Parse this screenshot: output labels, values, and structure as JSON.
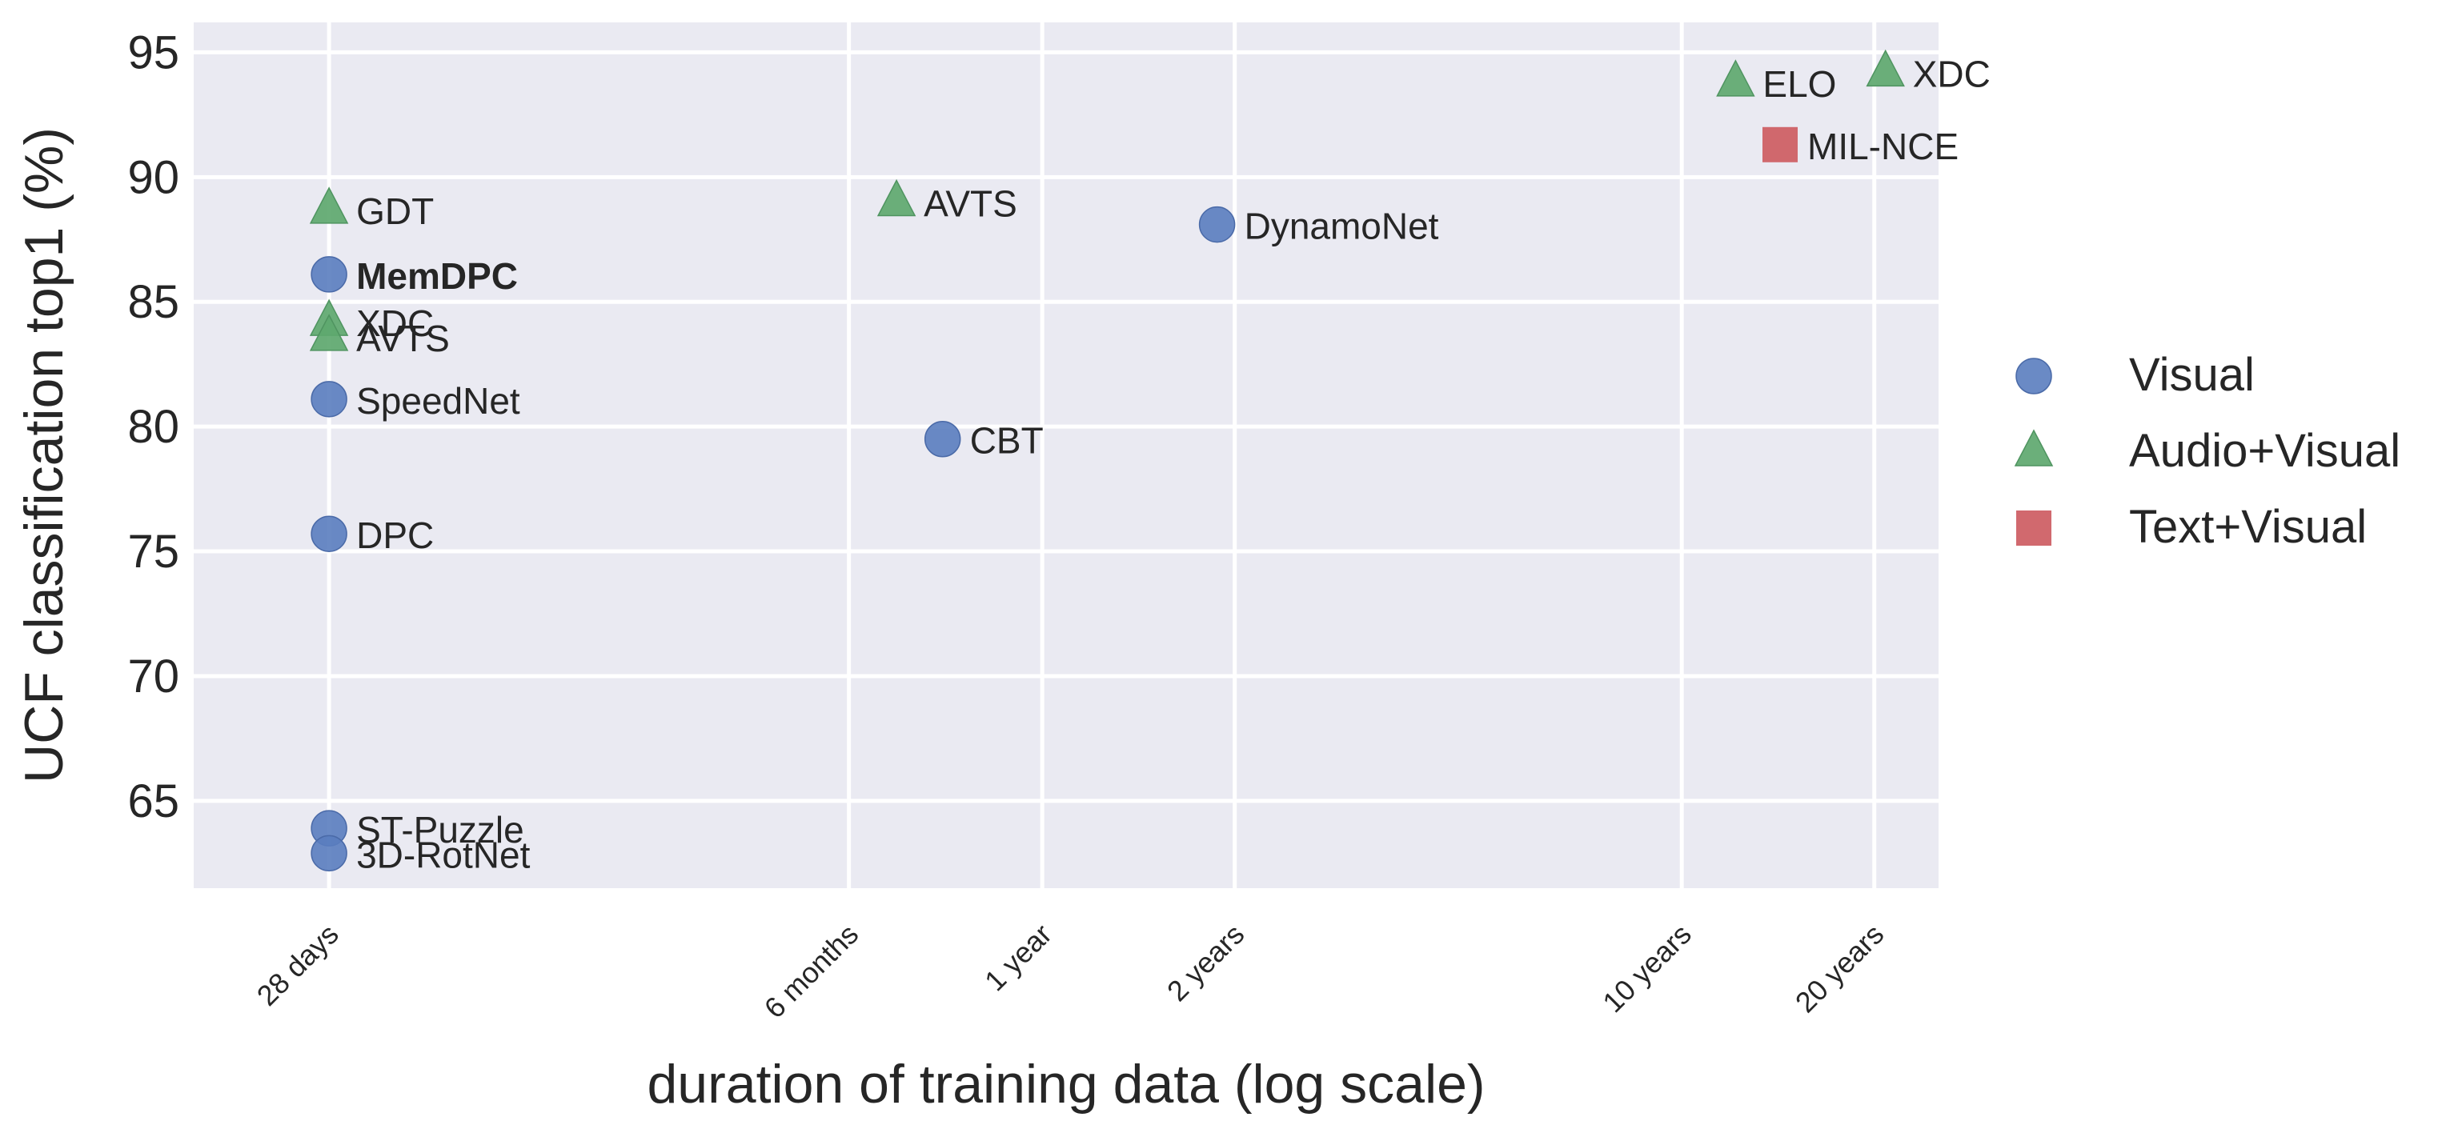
{
  "chart_data": {
    "type": "scatter",
    "title": "",
    "xlabel": "duration of training data (log scale)",
    "ylabel": "UCF classification top1 (%)",
    "xscale": "log",
    "x_unit": "days",
    "xlim": [
      17.2,
      9200
    ],
    "ylim": [
      61.5,
      96.2
    ],
    "x_ticks": [
      {
        "value": 28,
        "label": "28 days"
      },
      {
        "value": 182,
        "label": "6 months"
      },
      {
        "value": 365,
        "label": "1 year"
      },
      {
        "value": 730,
        "label": "2 years"
      },
      {
        "value": 3650,
        "label": "10 years"
      },
      {
        "value": 7300,
        "label": "20 years"
      }
    ],
    "y_ticks": [
      65,
      70,
      75,
      80,
      85,
      90,
      95
    ],
    "grid": true,
    "legend_position": "right",
    "series": [
      {
        "name": "Visual",
        "marker": "circle",
        "color": "#5a7dbf",
        "points": [
          {
            "label": "MemDPC",
            "x": 28,
            "y": 86.1,
            "bold": true
          },
          {
            "label": "SpeedNet",
            "x": 28,
            "y": 81.1
          },
          {
            "label": "DPC",
            "x": 28,
            "y": 75.7
          },
          {
            "label": "ST-Puzzle",
            "x": 28,
            "y": 63.9
          },
          {
            "label": "3D-RotNet",
            "x": 28,
            "y": 62.9
          },
          {
            "label": "CBT",
            "x": 255,
            "y": 79.5
          },
          {
            "label": "DynamoNet",
            "x": 685,
            "y": 88.1
          }
        ]
      },
      {
        "name": "Audio+Visual",
        "marker": "triangle",
        "color": "#5ea86f",
        "points": [
          {
            "label": "GDT",
            "x": 28,
            "y": 88.7
          },
          {
            "label": "XDC",
            "x": 28,
            "y": 84.2
          },
          {
            "label": "AVTS",
            "x": 28,
            "y": 83.6
          },
          {
            "label": "AVTS",
            "x": 216,
            "y": 89.0
          },
          {
            "label": "ELO",
            "x": 4430,
            "y": 93.8
          },
          {
            "label": "XDC",
            "x": 7600,
            "y": 94.2
          }
        ]
      },
      {
        "name": "Text+Visual",
        "marker": "square",
        "color": "#cd5c62",
        "points": [
          {
            "label": "MIL-NCE",
            "x": 5200,
            "y": 91.3
          }
        ]
      }
    ]
  }
}
